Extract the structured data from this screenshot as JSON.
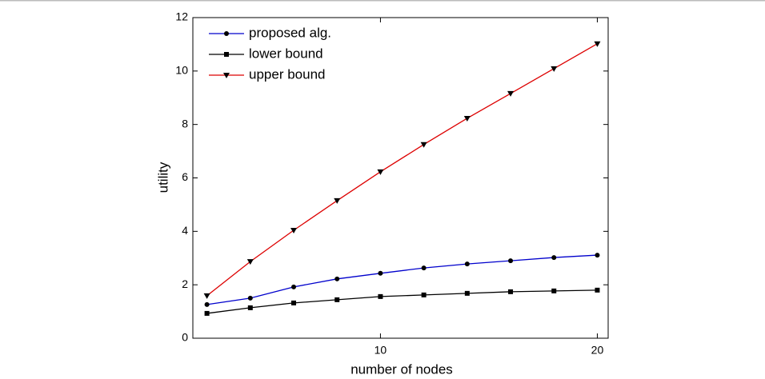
{
  "chart_data": {
    "type": "line",
    "x_label": "number of nodes",
    "y_label": "utility",
    "x": [
      2,
      4,
      6,
      8,
      10,
      12,
      14,
      16,
      18,
      20
    ],
    "series": [
      {
        "name": "proposed alg.",
        "color": "#0000cc",
        "marker": "circle",
        "values": [
          1.26,
          1.5,
          1.92,
          2.22,
          2.43,
          2.63,
          2.78,
          2.9,
          3.02,
          3.11
        ]
      },
      {
        "name": "lower bound",
        "color": "#000000",
        "marker": "square",
        "values": [
          0.93,
          1.14,
          1.32,
          1.44,
          1.56,
          1.62,
          1.68,
          1.74,
          1.77,
          1.8
        ]
      },
      {
        "name": "upper bound",
        "color": "#dd0000",
        "marker": "triangle-down",
        "values": [
          1.59,
          2.87,
          4.04,
          5.15,
          6.23,
          7.25,
          8.23,
          9.16,
          10.09,
          11.02
        ]
      }
    ],
    "xlim": [
      1.35,
      20.5
    ],
    "xticks": [
      10,
      20
    ],
    "ylim": [
      0,
      12
    ],
    "yticks": [
      0,
      2,
      4,
      6,
      8,
      10,
      12
    ],
    "legend": "top-left"
  }
}
